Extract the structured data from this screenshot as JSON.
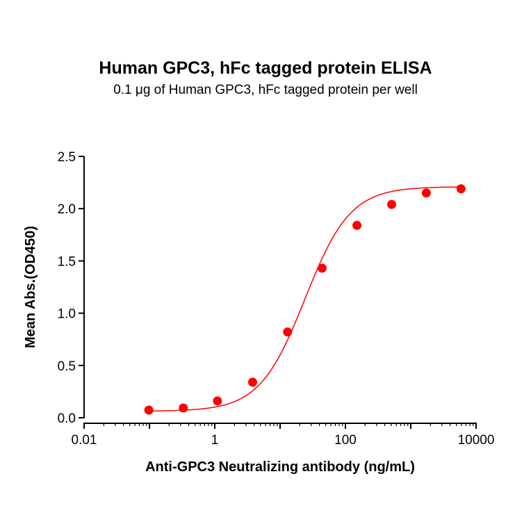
{
  "chart_data": {
    "type": "scatter",
    "title": "Human GPC3, hFc tagged protein ELISA",
    "subtitle": "0.1 μg of Human GPC3, hFc tagged protein per well",
    "xlabel": "Anti-GPC3 Neutralizing antibody (ng/mL)",
    "ylabel": "Mean Abs.(OD450)",
    "x_scale": "log",
    "xlim": [
      0.01,
      10000
    ],
    "ylim": [
      0,
      2.5
    ],
    "x_ticks": [
      "0.01",
      "1",
      "100",
      "10000"
    ],
    "y_ticks": [
      "0.0",
      "0.5",
      "1.0",
      "1.5",
      "2.0",
      "2.5"
    ],
    "grid": false,
    "color": "#ff0000",
    "fit": "4-parameter logistic curve",
    "series": [
      {
        "x": [
          0.098,
          0.33,
          1.1,
          3.8,
          13,
          44,
          150,
          510,
          1730,
          5880
        ],
        "y": [
          0.073,
          0.093,
          0.16,
          0.34,
          0.82,
          1.43,
          1.84,
          2.04,
          2.15,
          2.19
        ]
      }
    ]
  }
}
